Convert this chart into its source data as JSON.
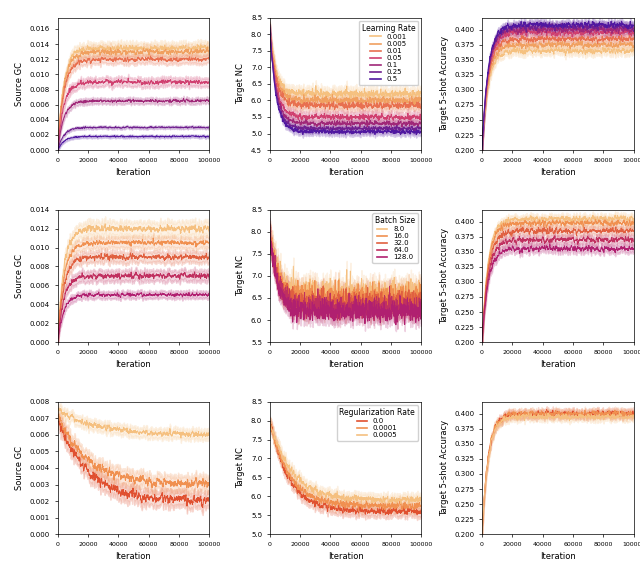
{
  "lr_colors": [
    "#f5c180",
    "#f0a060",
    "#e87050",
    "#d04070",
    "#a02878",
    "#702090",
    "#5018a0"
  ],
  "lr_labels": [
    "0.001",
    "0.005",
    "0.01",
    "0.05",
    "0.1",
    "0.25",
    "0.5"
  ],
  "bs_colors": [
    "#f5c080",
    "#f09050",
    "#e06040",
    "#c03060",
    "#b02070"
  ],
  "bs_labels": [
    "8.0",
    "16.0",
    "32.0",
    "64.0",
    "128.0"
  ],
  "rr_colors": [
    "#e05030",
    "#f09050",
    "#f5c080"
  ],
  "rr_labels": [
    "0.0",
    "0.0001",
    "0.0005"
  ],
  "figsize": [
    6.4,
    5.87
  ],
  "dpi": 100,
  "xlabel": "Iteration",
  "ylabel_gc": "Source GC",
  "ylabel_nc": "Target NC",
  "ylabel_acc": "Target 5-shot Accuracy",
  "legend_lr_title": "Learning Rate",
  "legend_bs_title": "Batch Size",
  "legend_rr_title": "Regularization Rate"
}
